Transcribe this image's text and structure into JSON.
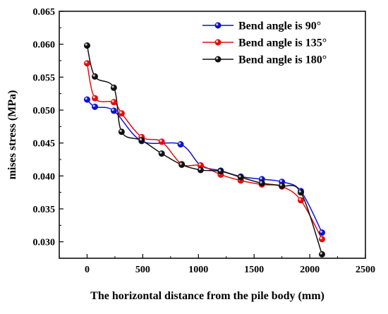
{
  "chart_data": {
    "type": "line",
    "xlabel": "The horizontal distance from the pile body (mm)",
    "ylabel": "mises stress (MPa)",
    "xlim": [
      -250,
      2500
    ],
    "ylim": [
      0.0275,
      0.065
    ],
    "x_ticks": [
      "0",
      "500",
      "1000",
      "1500",
      "2000",
      "2500"
    ],
    "y_ticks": [
      "0.030",
      "0.035",
      "0.040",
      "0.045",
      "0.050",
      "0.055",
      "0.060",
      "0.065"
    ],
    "legend_position": "top-right",
    "series": [
      {
        "name": "Bend angle is  90°",
        "color": "#1010d0",
        "x": [
          0,
          70,
          240,
          490,
          840,
          1020,
          1200,
          1380,
          1570,
          1750,
          1920,
          2110
        ],
        "y": [
          0.0516,
          0.0505,
          0.0499,
          0.0453,
          0.0448,
          0.0416,
          0.0408,
          0.0399,
          0.0395,
          0.0391,
          0.0377,
          0.0314
        ]
      },
      {
        "name": "Bend angle is 135°",
        "color": "#e01010",
        "x": [
          0,
          70,
          240,
          310,
          490,
          670,
          850,
          1020,
          1200,
          1380,
          1570,
          1750,
          1920,
          2110
        ],
        "y": [
          0.0571,
          0.0518,
          0.0512,
          0.0495,
          0.0459,
          0.0452,
          0.0418,
          0.0416,
          0.0402,
          0.0393,
          0.0387,
          0.0384,
          0.0363,
          0.0304
        ]
      },
      {
        "name": "Bend angle is  180°",
        "color": "#111111",
        "x": [
          0,
          70,
          240,
          310,
          490,
          670,
          850,
          1020,
          1200,
          1380,
          1570,
          1750,
          1920,
          2110
        ],
        "y": [
          0.0598,
          0.0551,
          0.0534,
          0.0467,
          0.0454,
          0.0434,
          0.0417,
          0.0409,
          0.0407,
          0.0398,
          0.0389,
          0.0385,
          0.0375,
          0.0281
        ]
      }
    ]
  }
}
